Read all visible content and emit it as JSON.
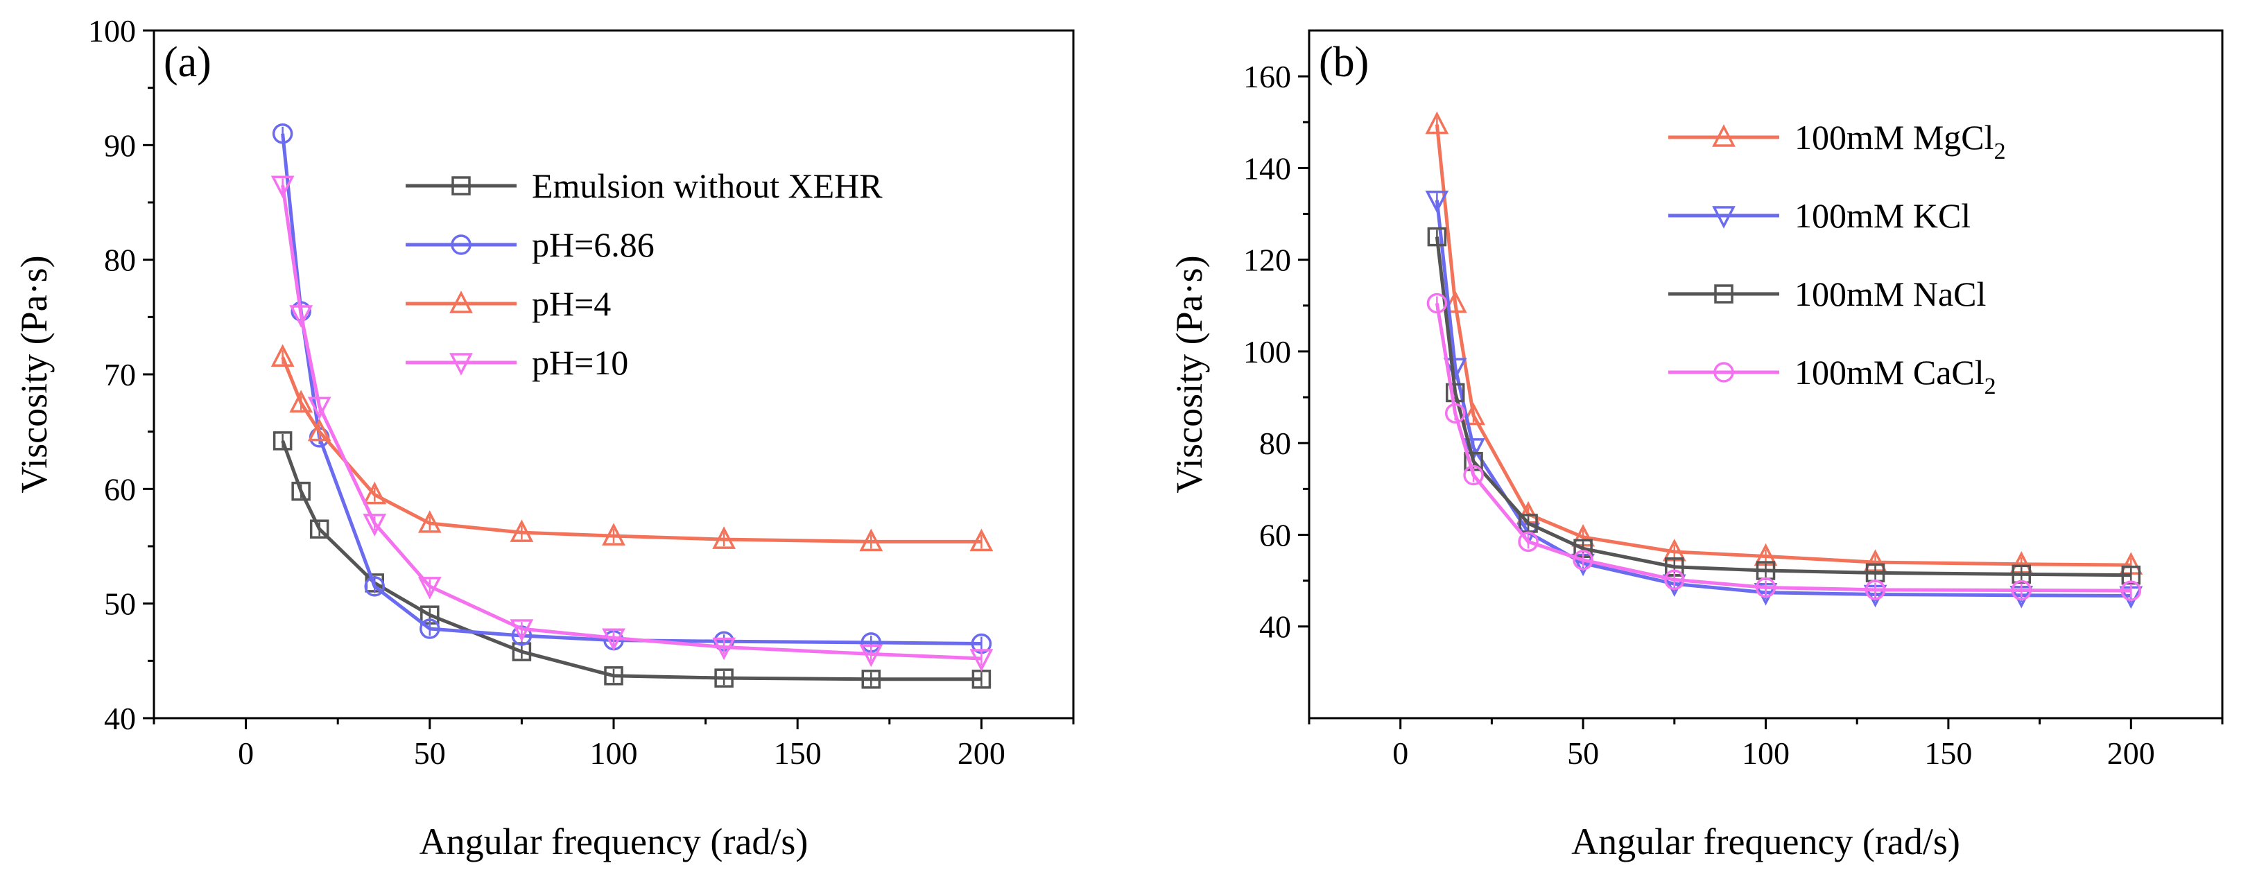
{
  "chart_data": [
    {
      "id": "a",
      "type": "line",
      "panel_label": "(a)",
      "xlabel": "Angular frequency (rad/s)",
      "ylabel": "Viscosity (Pa·s)",
      "xlim": [
        -25,
        225
      ],
      "ylim": [
        40,
        100
      ],
      "xticks": [
        0,
        50,
        100,
        150,
        200
      ],
      "yticks": [
        40,
        50,
        60,
        70,
        80,
        90,
        100
      ],
      "legend_position": "top-right",
      "series": [
        {
          "name": "Emulsion without XEHR",
          "marker": "square",
          "color": "#555555",
          "x": [
            10,
            15,
            20,
            35,
            50,
            75,
            100,
            130,
            170,
            200
          ],
          "y": [
            64.2,
            59.8,
            56.5,
            51.8,
            49.0,
            45.8,
            43.7,
            43.5,
            43.4,
            43.4
          ]
        },
        {
          "name": "pH=6.86",
          "marker": "circle",
          "color": "#6b6bf0",
          "x": [
            10,
            15,
            20,
            35,
            50,
            75,
            100,
            130,
            170,
            200
          ],
          "y": [
            91.0,
            75.5,
            64.5,
            51.5,
            47.8,
            47.2,
            46.8,
            46.7,
            46.6,
            46.5
          ]
        },
        {
          "name": "pH=4",
          "marker": "triangle-up",
          "color": "#f2735a",
          "x": [
            10,
            15,
            20,
            35,
            50,
            75,
            100,
            130,
            170,
            200
          ],
          "y": [
            71.5,
            67.5,
            65.0,
            59.5,
            57.0,
            56.2,
            55.9,
            55.6,
            55.4,
            55.4
          ]
        },
        {
          "name": "pH=10",
          "marker": "triangle-down",
          "color": "#f472f0",
          "x": [
            10,
            15,
            20,
            35,
            50,
            75,
            100,
            130,
            170,
            200
          ],
          "y": [
            86.5,
            75.2,
            67.2,
            57.0,
            51.5,
            47.8,
            47.0,
            46.2,
            45.6,
            45.2
          ]
        }
      ]
    },
    {
      "id": "b",
      "type": "line",
      "panel_label": "(b)",
      "xlabel": "Angular frequency (rad/s)",
      "ylabel": "Viscosity (Pa·s)",
      "xlim": [
        -25,
        225
      ],
      "ylim": [
        20,
        170
      ],
      "xticks": [
        0,
        50,
        100,
        150,
        200
      ],
      "yticks": [
        40,
        60,
        80,
        100,
        120,
        140,
        160
      ],
      "legend_position": "top-right",
      "series": [
        {
          "name": "100mM MgCl",
          "name_subscript": "2",
          "marker": "triangle-up",
          "color": "#f2735a",
          "x": [
            10,
            15,
            20,
            35,
            50,
            75,
            100,
            130,
            170,
            200
          ],
          "y": [
            149.5,
            110.5,
            86.0,
            64.5,
            59.5,
            56.3,
            55.3,
            54.0,
            53.6,
            53.4
          ]
        },
        {
          "name": "100mM KCl",
          "marker": "triangle-down",
          "color": "#6b6bf0",
          "x": [
            10,
            15,
            20,
            35,
            50,
            75,
            100,
            130,
            170,
            200
          ],
          "y": [
            133.0,
            96.5,
            79.0,
            60.5,
            53.8,
            49.3,
            47.4,
            47.0,
            46.8,
            46.7
          ]
        },
        {
          "name": "100mM NaCl",
          "marker": "square",
          "color": "#555555",
          "x": [
            10,
            15,
            20,
            35,
            50,
            75,
            100,
            130,
            170,
            200
          ],
          "y": [
            125.0,
            91.0,
            76.0,
            62.5,
            57.0,
            53.0,
            52.2,
            51.7,
            51.4,
            51.2
          ]
        },
        {
          "name": "100mM CaCl",
          "name_subscript": "2",
          "marker": "circle",
          "color": "#f472f0",
          "x": [
            10,
            15,
            20,
            35,
            50,
            75,
            100,
            130,
            170,
            200
          ],
          "y": [
            110.5,
            86.5,
            73.0,
            58.5,
            54.5,
            50.2,
            48.5,
            48.0,
            47.9,
            47.8
          ]
        }
      ]
    }
  ]
}
